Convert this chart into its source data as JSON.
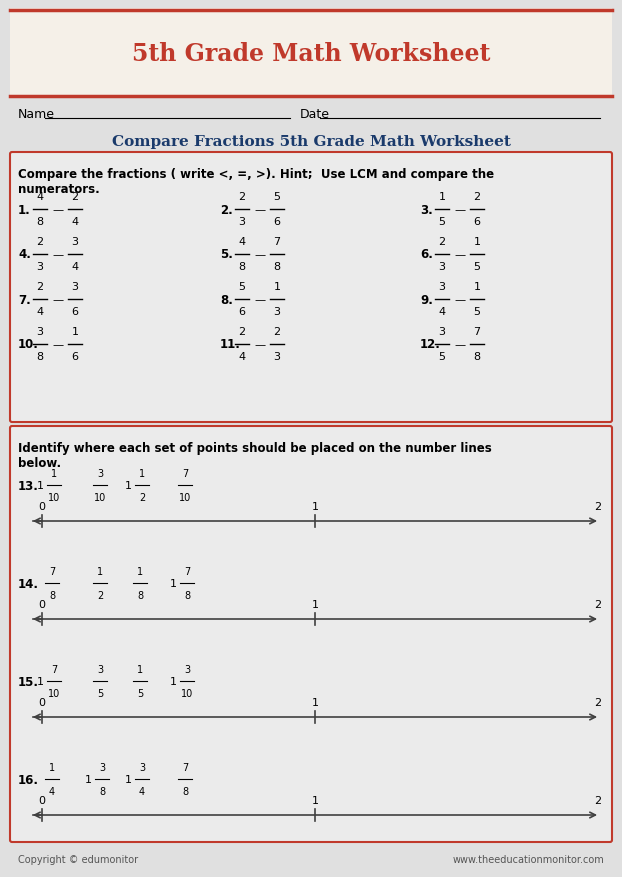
{
  "title": "5th Grade Math Worksheet",
  "subtitle": "Compare Fractions 5th Grade Math Worksheet",
  "header_bg": "#f5f0e8",
  "header_border": "#c0392b",
  "title_color": "#c0392b",
  "subtitle_color": "#1a3a6b",
  "body_bg": "#e8e8e8",
  "box_border": "#c0392b",
  "box_bg": "#e8e8e8",
  "text_color": "#000000",
  "instruction1": "Compare the fractions ( write <, =, >). Hint;  Use LCM and compare the\nnumerators.",
  "instruction2": "Identify where each set of points should be placed on the number lines\nbelow.",
  "compare_problems": [
    {
      "num": "1.",
      "f1n": "4",
      "f1d": "8",
      "f2n": "2",
      "f2d": "4"
    },
    {
      "num": "2.",
      "f1n": "2",
      "f1d": "3",
      "f2n": "5",
      "f2d": "6"
    },
    {
      "num": "3.",
      "f1n": "1",
      "f1d": "5",
      "f2n": "2",
      "f2d": "6"
    },
    {
      "num": "4.",
      "f1n": "2",
      "f1d": "3",
      "f2n": "3",
      "f2d": "4"
    },
    {
      "num": "5.",
      "f1n": "4",
      "f1d": "8",
      "f2n": "7",
      "f2d": "8"
    },
    {
      "num": "6.",
      "f1n": "2",
      "f1d": "3",
      "f2n": "1",
      "f2d": "5"
    },
    {
      "num": "7.",
      "f1n": "2",
      "f1d": "4",
      "f2n": "3",
      "f2d": "6"
    },
    {
      "num": "8.",
      "f1n": "5",
      "f1d": "6",
      "f2n": "1",
      "f2d": "3"
    },
    {
      "num": "9.",
      "f1n": "3",
      "f1d": "4",
      "f2n": "1",
      "f2d": "5"
    },
    {
      "num": "10.",
      "f1n": "3",
      "f1d": "8",
      "f2n": "1",
      "f2d": "6"
    },
    {
      "num": "11.",
      "f1n": "2",
      "f1d": "4",
      "f2n": "2",
      "f2d": "3"
    },
    {
      "num": "12.",
      "f1n": "3",
      "f1d": "5",
      "f2n": "7",
      "f2d": "8"
    }
  ],
  "number_line_problems": [
    {
      "num": "13.",
      "fracs": [
        "1\\frac{1}{10}",
        "\\frac{3}{10}",
        "1\\frac{1}{2}",
        "\\frac{7}{10}"
      ]
    },
    {
      "num": "14.",
      "fracs": [
        "\\frac{7}{8}",
        "\\frac{1}{2}",
        "\\frac{1}{8}",
        "1\\frac{7}{8}"
      ]
    },
    {
      "num": "15.",
      "fracs": [
        "1\\frac{7}{10}",
        "\\frac{3}{5}",
        "\\frac{1}{5}",
        "1\\frac{3}{10}"
      ]
    },
    {
      "num": "16.",
      "fracs": [
        "\\frac{1}{4}",
        "1\\frac{3}{8}",
        "1\\frac{3}{4}",
        "\\frac{7}{8}"
      ]
    }
  ],
  "footer_left": "Copyright © edumonitor",
  "footer_right": "www.theeducationmonitor.com"
}
